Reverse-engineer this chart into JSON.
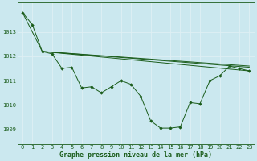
{
  "background_color": "#cbe8ef",
  "grid_color": "#dff0f4",
  "line_color": "#1a5c1a",
  "marker_color": "#1a5c1a",
  "xlabel": "Graphe pression niveau de la mer (hPa)",
  "xlabel_fontsize": 6.0,
  "tick_fontsize": 5.0,
  "ylim": [
    1008.4,
    1014.2
  ],
  "yticks": [
    1009,
    1010,
    1011,
    1012,
    1013
  ],
  "xlim": [
    -0.5,
    23.5
  ],
  "xticks": [
    0,
    1,
    2,
    3,
    4,
    5,
    6,
    7,
    8,
    9,
    10,
    11,
    12,
    13,
    14,
    15,
    16,
    17,
    18,
    19,
    20,
    21,
    22,
    23
  ],
  "series": [
    {
      "x": [
        0,
        1,
        2,
        3,
        4,
        5,
        6,
        7,
        8,
        9,
        10,
        11,
        12,
        13,
        14,
        15,
        16,
        17,
        18,
        19,
        20,
        21,
        22,
        23
      ],
      "y": [
        1013.8,
        1013.3,
        1012.2,
        1012.1,
        1011.5,
        1011.55,
        1010.7,
        1010.75,
        1010.5,
        1010.75,
        1011.0,
        1010.85,
        1010.35,
        1009.35,
        1009.05,
        1009.05,
        1009.1,
        1010.1,
        1010.05,
        1011.0,
        1011.2,
        1011.6,
        1011.5,
        1011.4
      ],
      "has_markers": true
    },
    {
      "x": [
        2,
        23
      ],
      "y": [
        1012.2,
        1011.55
      ],
      "has_markers": false
    },
    {
      "x": [
        2,
        23
      ],
      "y": [
        1012.2,
        1011.4
      ],
      "has_markers": false
    },
    {
      "x": [
        0,
        2,
        23
      ],
      "y": [
        1013.8,
        1012.2,
        1011.6
      ],
      "has_markers": false
    }
  ]
}
